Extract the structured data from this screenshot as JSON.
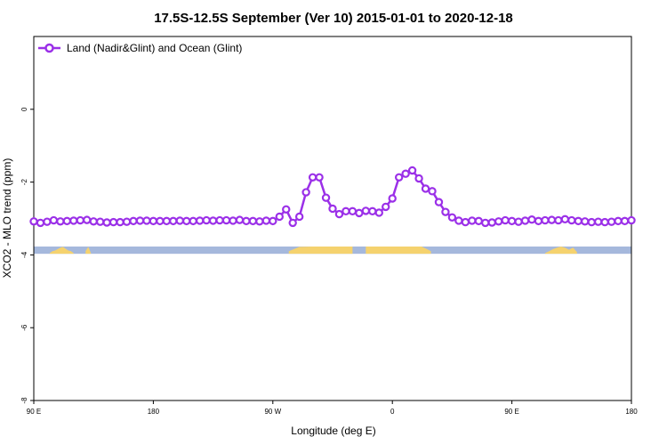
{
  "chart_data": {
    "type": "line",
    "title": "17.5S-12.5S September (Ver 10)   2015-01-01 to 2020-12-18",
    "xlabel": "Longitude (deg E)",
    "ylabel": "XCO2 - MLO trend (ppm)",
    "ylim": [
      -8,
      2
    ],
    "x_ticks": [
      "90 E",
      "180",
      "90 W",
      "0",
      "90 E",
      "180"
    ],
    "y_ticks": [
      "0",
      "-2",
      "-4",
      "-6",
      "-8"
    ],
    "legend_position": "top-left",
    "series": [
      {
        "name": "Land (Nadir&Glint) and Ocean (Glint)",
        "color": "#9b30e8",
        "x": [
          90,
          95,
          100,
          105,
          110,
          115,
          120,
          125,
          130,
          135,
          140,
          145,
          150,
          155,
          160,
          165,
          170,
          175,
          180,
          185,
          190,
          195,
          200,
          205,
          210,
          215,
          220,
          225,
          230,
          235,
          240,
          245,
          250,
          255,
          260,
          265,
          270,
          275,
          280,
          285,
          290,
          295,
          300,
          305,
          310,
          315,
          320,
          325,
          330,
          335,
          340,
          345,
          350,
          355,
          360,
          365,
          370,
          375,
          380,
          385,
          390,
          395,
          400,
          405,
          410,
          415,
          420,
          425,
          430,
          435,
          440,
          445,
          450,
          455,
          460,
          465,
          470,
          475,
          480,
          485,
          490,
          495,
          500,
          505,
          510,
          515,
          520,
          525,
          530,
          535,
          540
        ],
        "y": [
          -3.08,
          -3.12,
          -3.09,
          -3.05,
          -3.08,
          -3.07,
          -3.06,
          -3.05,
          -3.04,
          -3.08,
          -3.09,
          -3.11,
          -3.1,
          -3.1,
          -3.09,
          -3.07,
          -3.06,
          -3.06,
          -3.07,
          -3.07,
          -3.07,
          -3.07,
          -3.06,
          -3.07,
          -3.07,
          -3.06,
          -3.05,
          -3.06,
          -3.05,
          -3.05,
          -3.06,
          -3.04,
          -3.07,
          -3.07,
          -3.08,
          -3.06,
          -3.07,
          -2.95,
          -2.75,
          -3.12,
          -2.95,
          -2.28,
          -1.87,
          -1.87,
          -2.43,
          -2.73,
          -2.88,
          -2.8,
          -2.8,
          -2.85,
          -2.79,
          -2.8,
          -2.84,
          -2.68,
          -2.45,
          -1.87,
          -1.77,
          -1.68,
          -1.9,
          -2.18,
          -2.25,
          -2.55,
          -2.82,
          -2.97,
          -3.06,
          -3.1,
          -3.06,
          -3.07,
          -3.12,
          -3.11,
          -3.08,
          -3.05,
          -3.07,
          -3.09,
          -3.06,
          -3.03,
          -3.07,
          -3.05,
          -3.04,
          -3.05,
          -3.02,
          -3.05,
          -3.07,
          -3.08,
          -3.1,
          -3.09,
          -3.1,
          -3.09,
          -3.07,
          -3.07,
          -3.05
        ]
      }
    ],
    "land_mask": {
      "name": "land/ocean mask",
      "ocean_color": "#a5b8dc",
      "land_color": "#f5d26e",
      "y_range": [
        -3.97,
        -3.77
      ],
      "land_segments": [
        {
          "x": [
            102,
            104,
            106,
            108,
            110,
            112,
            114,
            116,
            118,
            120
          ],
          "top": [
            -3.95,
            -3.9,
            -3.88,
            -3.84,
            -3.8,
            -3.78,
            -3.83,
            -3.88,
            -3.9,
            -3.95
          ]
        },
        {
          "x": [
            129,
            131,
            133
          ],
          "top": [
            -3.9,
            -3.78,
            -3.95
          ]
        },
        {
          "x": [
            282,
            290,
            300,
            310,
            320,
            330
          ],
          "top": [
            -3.9,
            -3.78,
            -3.77,
            -3.77,
            -3.77,
            -3.77
          ]
        },
        {
          "x": [
            340,
            350,
            360,
            370,
            382,
            386,
            389
          ],
          "top": [
            -3.77,
            -3.77,
            -3.77,
            -3.77,
            -3.77,
            -3.84,
            -3.9
          ]
        },
        {
          "x": [
            475,
            478,
            481,
            484,
            487,
            490,
            493,
            496,
            499
          ],
          "top": [
            -3.95,
            -3.9,
            -3.84,
            -3.8,
            -3.77,
            -3.8,
            -3.86,
            -3.8,
            -3.92
          ]
        }
      ]
    }
  }
}
